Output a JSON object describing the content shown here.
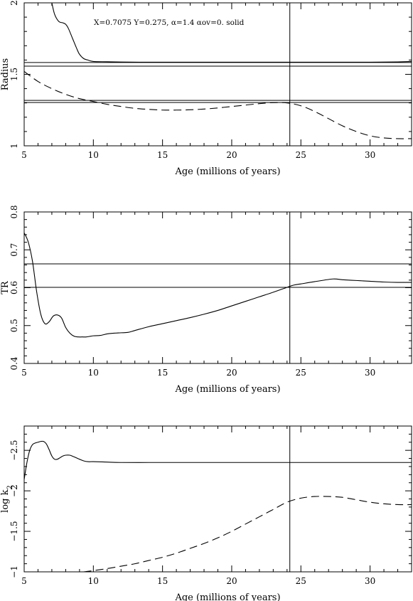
{
  "chart_data": [
    {
      "type": "line",
      "ylabel": "Radius",
      "xlabel": "Age (millions of years)",
      "xlim": [
        5,
        33
      ],
      "ylim": [
        1,
        2
      ],
      "xticks": [
        "5",
        "10",
        "15",
        "20",
        "25",
        "30"
      ],
      "yticks": [
        "1",
        "1.5",
        "2"
      ],
      "grid": false,
      "annotation": "X=0.7075  Y=0.275, α=1.4 αov=0. solid",
      "series": [
        {
          "style": "solid",
          "x": [
            7.0,
            7.2,
            7.5,
            7.8,
            8.0,
            8.2,
            8.5,
            8.8,
            9.0,
            9.3,
            9.6,
            10.0,
            11,
            12,
            14,
            16,
            18,
            20,
            22,
            24,
            26,
            28,
            30,
            32,
            33
          ],
          "y": [
            2.0,
            1.92,
            1.87,
            1.86,
            1.85,
            1.82,
            1.75,
            1.68,
            1.64,
            1.61,
            1.6,
            1.59,
            1.588,
            1.586,
            1.585,
            1.585,
            1.585,
            1.585,
            1.585,
            1.585,
            1.585,
            1.585,
            1.585,
            1.587,
            1.59
          ]
        },
        {
          "style": "dashed",
          "x": [
            5,
            6,
            7,
            8,
            9,
            10,
            11,
            12,
            13,
            14,
            15,
            16,
            17,
            18,
            19,
            20,
            21,
            22,
            23,
            24,
            25,
            26,
            27,
            28,
            29,
            30,
            31,
            32,
            33
          ],
          "y": [
            1.52,
            1.45,
            1.4,
            1.36,
            1.33,
            1.31,
            1.29,
            1.275,
            1.262,
            1.255,
            1.25,
            1.25,
            1.252,
            1.257,
            1.265,
            1.275,
            1.285,
            1.295,
            1.302,
            1.3,
            1.28,
            1.24,
            1.19,
            1.14,
            1.1,
            1.07,
            1.055,
            1.05,
            1.05
          ]
        }
      ],
      "hlines": [
        1.583,
        1.557,
        1.318,
        1.303
      ],
      "vline": 24.2
    },
    {
      "type": "line",
      "ylabel": "TR",
      "xlabel": "Age (millions of years)",
      "xlim": [
        5,
        33
      ],
      "ylim": [
        0.4,
        0.8
      ],
      "xticks": [
        "5",
        "10",
        "15",
        "20",
        "25",
        "30"
      ],
      "yticks": [
        "0.4",
        "0.5",
        "0.6",
        "0.7",
        "0.8"
      ],
      "grid": false,
      "series": [
        {
          "style": "solid",
          "x": [
            5.0,
            5.3,
            5.6,
            5.9,
            6.2,
            6.5,
            6.8,
            7.1,
            7.4,
            7.7,
            8.0,
            8.3,
            8.6,
            8.9,
            9.2,
            9.5,
            10,
            10.5,
            11,
            11.5,
            12,
            12.5,
            13,
            14,
            15,
            16,
            17,
            18,
            19,
            20,
            21,
            22,
            23,
            24,
            24.5,
            25,
            26,
            27.3,
            28,
            29,
            30,
            31,
            32,
            33
          ],
          "y": [
            0.745,
            0.72,
            0.67,
            0.59,
            0.53,
            0.505,
            0.51,
            0.525,
            0.528,
            0.52,
            0.495,
            0.48,
            0.472,
            0.47,
            0.47,
            0.47,
            0.473,
            0.474,
            0.478,
            0.48,
            0.481,
            0.482,
            0.487,
            0.497,
            0.505,
            0.513,
            0.521,
            0.53,
            0.54,
            0.552,
            0.564,
            0.576,
            0.588,
            0.601,
            0.607,
            0.61,
            0.616,
            0.623,
            0.621,
            0.619,
            0.617,
            0.615,
            0.614,
            0.614
          ]
        }
      ],
      "hlines": [
        0.663,
        0.601
      ],
      "vline": 24.2
    },
    {
      "type": "line",
      "ylabel": "log k2",
      "xlabel": "Age (millions of years)",
      "xlim": [
        5,
        33
      ],
      "ylim": [
        -1,
        -2.8
      ],
      "xticks": [
        "5",
        "10",
        "15",
        "20",
        "25",
        "30"
      ],
      "yticks": [
        "−1",
        "−1.5",
        "−2",
        "−2.5"
      ],
      "grid": false,
      "series": [
        {
          "style": "solid",
          "x": [
            5.0,
            5.2,
            5.4,
            5.6,
            5.8,
            6.0,
            6.2,
            6.4,
            6.6,
            6.8,
            7.0,
            7.2,
            7.4,
            7.6,
            7.8,
            8.0,
            8.3,
            8.6,
            9.0,
            9.3,
            9.6,
            10,
            11,
            12,
            14,
            16,
            18,
            20,
            22,
            24,
            26,
            28,
            30,
            32,
            33
          ],
          "y": [
            -2.14,
            -2.35,
            -2.5,
            -2.57,
            -2.59,
            -2.6,
            -2.61,
            -2.61,
            -2.58,
            -2.51,
            -2.43,
            -2.39,
            -2.39,
            -2.41,
            -2.43,
            -2.44,
            -2.44,
            -2.42,
            -2.39,
            -2.37,
            -2.36,
            -2.36,
            -2.355,
            -2.35,
            -2.35,
            -2.35,
            -2.35,
            -2.35,
            -2.35,
            -2.35,
            -2.35,
            -2.35,
            -2.35,
            -2.35,
            -2.35
          ]
        },
        {
          "style": "dashed",
          "x": [
            9.3,
            10,
            11,
            12,
            13,
            14,
            15,
            16,
            17,
            18,
            19,
            20,
            21,
            22,
            23,
            24,
            25,
            26,
            27,
            28,
            29,
            30,
            31,
            32,
            33
          ],
          "y": [
            -1.0,
            -1.015,
            -1.04,
            -1.07,
            -1.1,
            -1.14,
            -1.18,
            -1.23,
            -1.29,
            -1.35,
            -1.42,
            -1.5,
            -1.59,
            -1.68,
            -1.77,
            -1.86,
            -1.91,
            -1.93,
            -1.93,
            -1.92,
            -1.89,
            -1.86,
            -1.84,
            -1.83,
            -1.83
          ]
        }
      ],
      "vline": 24.2
    }
  ]
}
